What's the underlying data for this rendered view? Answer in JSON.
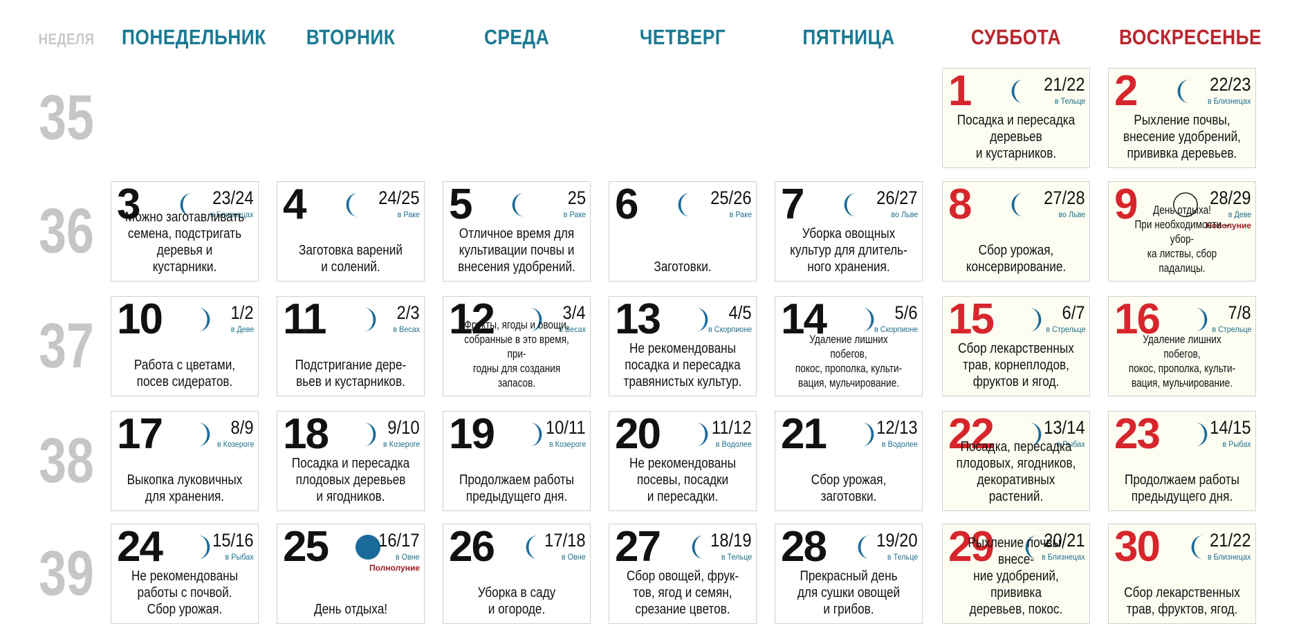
{
  "header": {
    "week_label": "НЕДЕЛЯ",
    "days": [
      {
        "label": "ПОНЕДЕЛЬНИК",
        "weekend": false
      },
      {
        "label": "ВТОРНИК",
        "weekend": false
      },
      {
        "label": "СРЕДА",
        "weekend": false
      },
      {
        "label": "ЧЕТВЕРГ",
        "weekend": false
      },
      {
        "label": "ПЯТНИЦА",
        "weekend": false
      },
      {
        "label": "СУББОТА",
        "weekend": true
      },
      {
        "label": "ВОСКРЕСЕНЬЕ",
        "weekend": true
      }
    ]
  },
  "colors": {
    "weekday_header": "#1b7a93",
    "weekend_header": "#b8262e",
    "weekend_day_number": "#d6262c",
    "moon": "#1a6b9a",
    "week_number": "#c6c6c6"
  },
  "weeks": [
    {
      "number": "35",
      "days": [
        null,
        null,
        null,
        null,
        null,
        {
          "day": "1",
          "lunar": "21/22",
          "zodiac": "в Тельце",
          "moon": "waning",
          "text": "Посадка и пересадка\nдеревьев\nи кустарников."
        },
        {
          "day": "2",
          "lunar": "22/23",
          "zodiac": "в Близнецах",
          "moon": "waning",
          "text": "Рыхление почвы,\nвнесение удобрений,\nприивка деревьев."
        }
      ]
    },
    {
      "number": "36",
      "days": [
        {
          "day": "3",
          "lunar": "23/24",
          "zodiac": "в Близнецах",
          "moon": "waning",
          "text": "Можно заготавливать\nсемена, подстригать\nдеревья и кустарники."
        },
        {
          "day": "4",
          "lunar": "24/25",
          "zodiac": "в Раке",
          "moon": "waning",
          "text": "Заготовка варений\nи солений."
        },
        {
          "day": "5",
          "lunar": "25",
          "zodiac": "в Раке",
          "moon": "waning",
          "text": "Отличное время для\nкультивации почвы и\nвнесения удобрений."
        },
        {
          "day": "6",
          "lunar": "25/26",
          "zodiac": "в Раке",
          "moon": "waning-thin",
          "text": "Заготовки."
        },
        {
          "day": "7",
          "lunar": "26/27",
          "zodiac": "во Льве",
          "moon": "waning-thin",
          "text": "Уборка овощных\nкультур для длитель-\nного хранения."
        },
        {
          "day": "8",
          "lunar": "27/28",
          "zodiac": "во Льве",
          "moon": "waning-thin",
          "text": "Сбор урожая,\nконсервирование."
        },
        {
          "day": "9",
          "lunar": "28/29",
          "zodiac": "в Деве",
          "moon": "new",
          "phase": "Новолуние",
          "text": "День отдыха!\nПри необходимости – убор-\nка листвы, сбор падалицы.",
          "small": true
        }
      ]
    },
    {
      "number": "37",
      "days": [
        {
          "day": "10",
          "lunar": "1/2",
          "zodiac": "в Деве",
          "moon": "waxing",
          "text": "Работа с цветами,\nпосев сидератов."
        },
        {
          "day": "11",
          "lunar": "2/3",
          "zodiac": "в Весах",
          "moon": "waxing",
          "text": "Подстригание дере-\nвьев и кустарников."
        },
        {
          "day": "12",
          "lunar": "3/4",
          "zodiac": "в Весах",
          "moon": "waxing",
          "text": "Фрукты, ягоды и овощи,\nсобранные в это время, при-\nгодны для создания запасов.",
          "small": true
        },
        {
          "day": "13",
          "lunar": "4/5",
          "zodiac": "в Скорпионе",
          "moon": "waxing",
          "text": "Не рекомендованы\nпосадка и пересадка\nтравянистых культур."
        },
        {
          "day": "14",
          "lunar": "5/6",
          "zodiac": "в Скорпионе",
          "moon": "waxing",
          "text": "Удаление лишних побегов,\nпокос, прополка, культи-\nвация, мульчирование.",
          "small": true
        },
        {
          "day": "15",
          "lunar": "6/7",
          "zodiac": "в Стрельце",
          "moon": "waxing",
          "text": "Сбор лекарственных\nтрав, корнеплодов,\nфруктов и ягод."
        },
        {
          "day": "16",
          "lunar": "7/8",
          "zodiac": "в Стрельце",
          "moon": "waxing",
          "text": "Удаление лишних побегов,\nпокос, прополка, культи-\nвация, мульчирование.",
          "small": true
        }
      ]
    },
    {
      "number": "38",
      "days": [
        {
          "day": "17",
          "lunar": "8/9",
          "zodiac": "в Козероге",
          "moon": "waxing",
          "text": "Выкопка луковичных\nдля хранения."
        },
        {
          "day": "18",
          "lunar": "9/10",
          "zodiac": "в Козероге",
          "moon": "waxing",
          "text": "Посадка и пересадка\nплодовых деревьев\nи ягодников."
        },
        {
          "day": "19",
          "lunar": "10/11",
          "zodiac": "в Козероге",
          "moon": "waxing",
          "text": "Продолжаем работы\nпредыдущего дня."
        },
        {
          "day": "20",
          "lunar": "11/12",
          "zodiac": "в Водолее",
          "moon": "waxing",
          "text": "Не рекомендованы\nпосевы, посадки\nи пересадки."
        },
        {
          "day": "21",
          "lunar": "12/13",
          "zodiac": "в Водолее",
          "moon": "waxing",
          "text": "Сбор урожая,\nзаготовки."
        },
        {
          "day": "22",
          "lunar": "13/14",
          "zodiac": "в Рыбах",
          "moon": "waxing",
          "text": "Посадка, пересадка\nплодовых, ягодников,\nдекоративных растений."
        },
        {
          "day": "23",
          "lunar": "14/15",
          "zodiac": "в Рыбах",
          "moon": "waxing",
          "text": "Продолжаем работы\nпредыдущего дня."
        }
      ]
    },
    {
      "number": "39",
      "days": [
        {
          "day": "24",
          "lunar": "15/16",
          "zodiac": "в Рыбах",
          "moon": "waxing",
          "text": "Не рекомендованы\nработы с почвой.\nСбор урожая."
        },
        {
          "day": "25",
          "lunar": "16/17",
          "zodiac": "в Овне",
          "moon": "full",
          "phase": "Полнолуние",
          "text": "День отдыха!"
        },
        {
          "day": "26",
          "lunar": "17/18",
          "zodiac": "в Овне",
          "moon": "waning",
          "text": "Уборка в саду\nи огороде."
        },
        {
          "day": "27",
          "lunar": "18/19",
          "zodiac": "в Тельце",
          "moon": "waning",
          "text": "Сбор овощей, фрук-\nтов, ягод и семян,\nсрезание цветов."
        },
        {
          "day": "28",
          "lunar": "19/20",
          "zodiac": "в Тельце",
          "moon": "waning",
          "text": "Прекрасный день\nдля сушки овощей\nи грибов."
        },
        {
          "day": "29",
          "lunar": "20/21",
          "zodiac": "в Близнецах",
          "moon": "waning",
          "text": "Рыхление почвы, внесе-\nние удобрений, прививка\nдеревьев, покос."
        },
        {
          "day": "30",
          "lunar": "21/22",
          "zodiac": "в Близнецах",
          "moon": "waning",
          "text": "Сбор лекарственных\nтрав, фруктов, ягод."
        }
      ]
    }
  ]
}
